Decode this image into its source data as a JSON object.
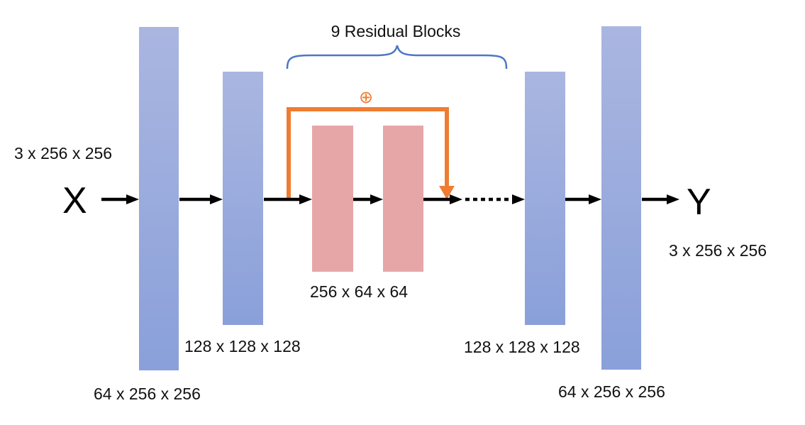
{
  "diagram": {
    "title": "9 Residual Blocks",
    "input": {
      "symbol": "X",
      "shape": "3 x 256 x 256"
    },
    "output": {
      "symbol": "Y",
      "shape": "3 x 256 x 256"
    },
    "layers": {
      "enc1_shape": "64 x 256 x 256",
      "enc2_shape": "128 x 128 x 128",
      "res_shape": "256 x 64 x 64",
      "dec1_shape": "128 x 128 x 128",
      "dec2_shape": "64 x 256 x 256"
    },
    "skip_symbol": "⊕"
  },
  "colors": {
    "conv_top": "#aab6e0",
    "conv_bottom": "#8aa0da",
    "residual": "#e6a6a8",
    "skip": "#ee7d31",
    "brace": "#4d77c6",
    "arrow": "#000000"
  }
}
